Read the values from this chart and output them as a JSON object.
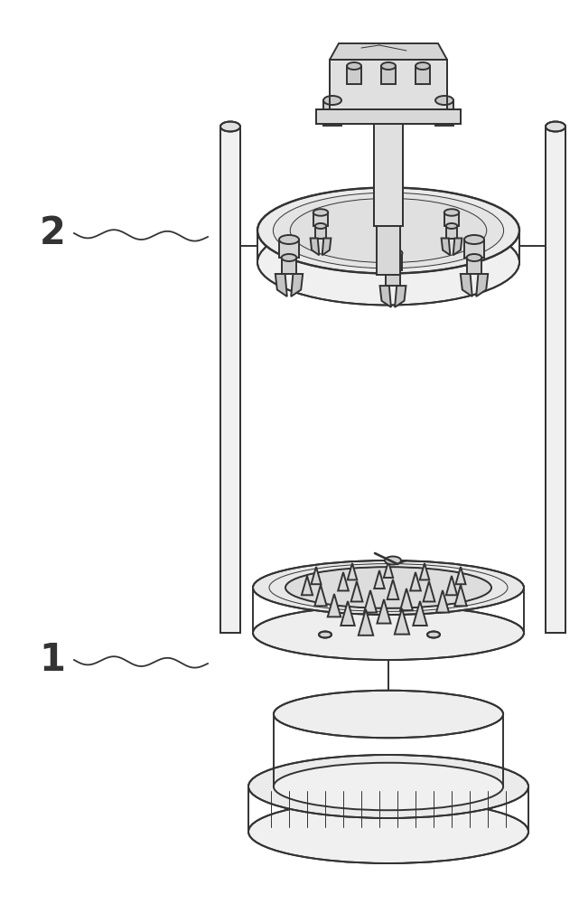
{
  "bg_color": "#ffffff",
  "line_color": "#333333",
  "lw_main": 1.4,
  "lw_thin": 0.7,
  "lw_thick": 1.8,
  "label1": "1",
  "label2": "2",
  "label_fontsize": 30
}
